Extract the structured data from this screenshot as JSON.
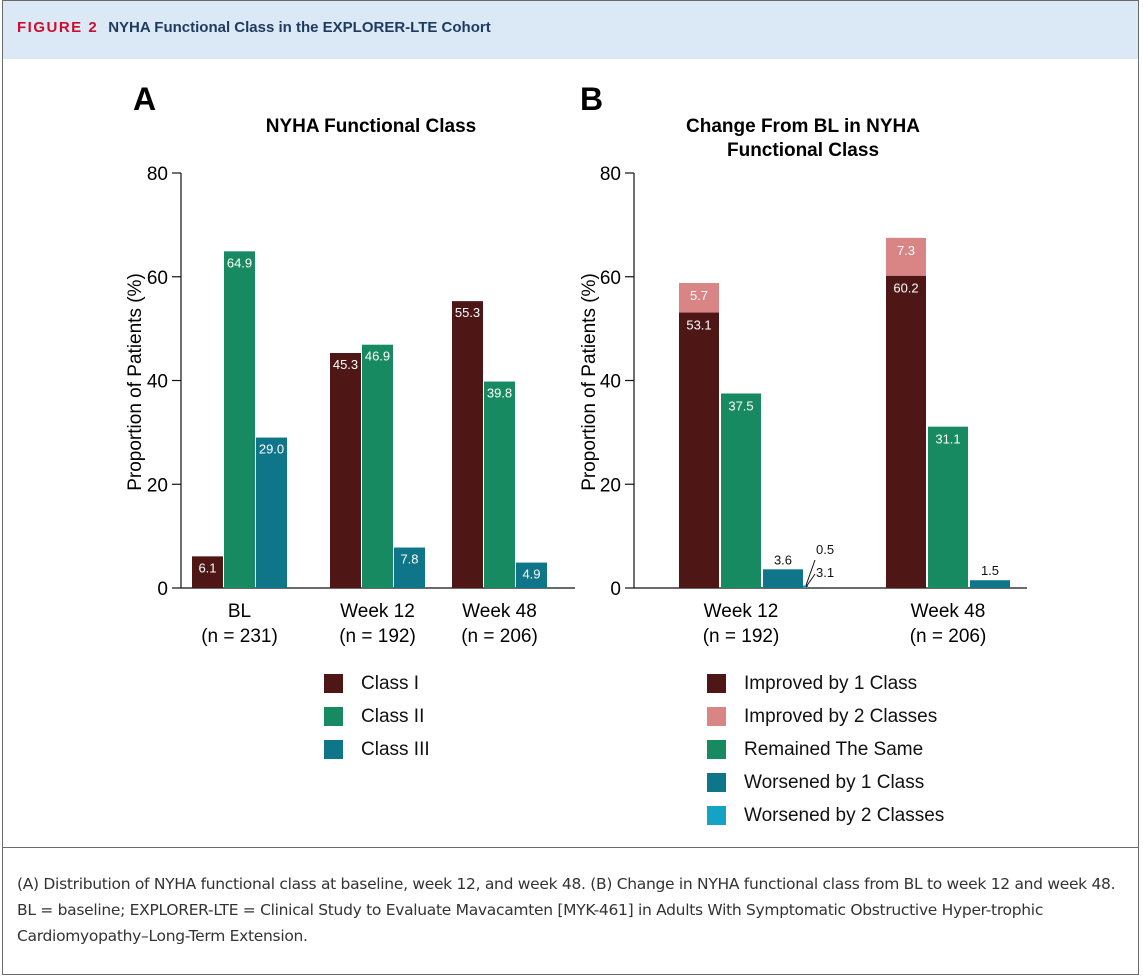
{
  "header": {
    "figure_label": "FIGURE 2",
    "title": "NYHA Functional Class in the EXPLORER-LTE Cohort"
  },
  "caption": "(A) Distribution of NYHA functional class at baseline, week 12, and week 48. (B) Change in NYHA functional class from BL to week 12 and week 48. BL = baseline; EXPLORER-LTE = Clinical Study to Evaluate Mavacamten [MYK-461] in Adults With Symptomatic Obstructive Hyper-trophic Cardiomyopathy–Long-Term Extension.",
  "chart_data": [
    {
      "panel": "A",
      "type": "bar",
      "title": "NYHA Functional Class",
      "ylabel": "Proportion of Patients (%)",
      "ylim": [
        0,
        80
      ],
      "yticks": [
        0,
        20,
        40,
        60,
        80
      ],
      "categories": [
        [
          "BL",
          "(n = 231)"
        ],
        [
          "Week 12",
          "(n = 192)"
        ],
        [
          "Week 48",
          "(n = 206)"
        ]
      ],
      "series": [
        {
          "name": "Class I",
          "color": "#4f1616",
          "values": [
            6.1,
            45.3,
            55.3
          ],
          "labels": [
            "6.1",
            "45.3",
            "55.3"
          ]
        },
        {
          "name": "Class II",
          "color": "#178a62",
          "values": [
            64.9,
            46.9,
            39.8
          ],
          "labels": [
            "64.9",
            "46.9",
            "39.8"
          ]
        },
        {
          "name": "Class III",
          "color": "#0f768a",
          "values": [
            29.0,
            7.8,
            4.9
          ],
          "labels": [
            "29.0",
            "7.8",
            "4.9"
          ]
        }
      ]
    },
    {
      "panel": "B",
      "type": "bar",
      "title": "Change From BL in NYHA Functional Class",
      "title_lines": [
        "Change From BL in NYHA",
        "Functional Class"
      ],
      "ylabel": "Proportion of Patients (%)",
      "ylim": [
        0,
        80
      ],
      "yticks": [
        0,
        20,
        40,
        60,
        80
      ],
      "categories": [
        [
          "Week 12",
          "(n = 192)"
        ],
        [
          "Week 48",
          "(n = 206)"
        ]
      ],
      "series": [
        {
          "name": "Improved by 1 Class",
          "color": "#4f1616",
          "values": [
            53.1,
            60.2
          ],
          "labels": [
            "53.1",
            "60.2"
          ]
        },
        {
          "name": "Improved by 2 Classes",
          "color": "#d98585",
          "values": [
            5.7,
            7.3
          ],
          "labels": [
            "5.7",
            "7.3"
          ]
        },
        {
          "name": "Remained The Same",
          "color": "#178a62",
          "values": [
            37.5,
            31.1
          ],
          "labels": [
            "37.5",
            "31.1"
          ]
        },
        {
          "name": "Worsened by 1 Class",
          "color": "#0f768a",
          "values": [
            3.6,
            1.5
          ],
          "labels": [
            "3.6",
            "1.5"
          ]
        },
        {
          "name": "Worsened by 2 Classes",
          "color": "#13a3c4",
          "values": [
            0.5,
            0
          ],
          "labels": [
            "0.5",
            ""
          ]
        }
      ],
      "annotations": [
        "3.1"
      ]
    }
  ]
}
